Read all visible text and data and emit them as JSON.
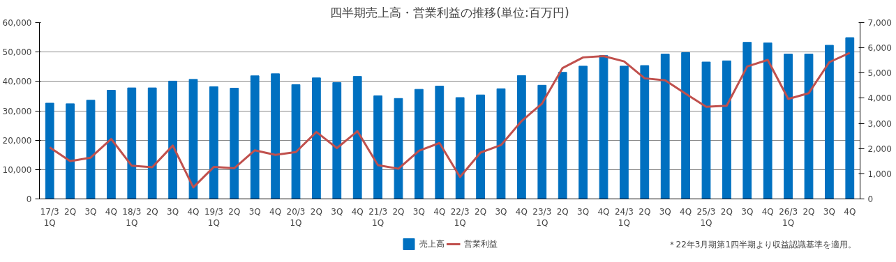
{
  "chart_data": {
    "type": "bar",
    "title": "四半期売上高・営業利益の推移(単位:百万円)",
    "categories": [
      "17/3\n1Q",
      "2Q",
      "3Q",
      "4Q",
      "18/3\n1Q",
      "2Q",
      "3Q",
      "4Q",
      "19/3\n1Q",
      "2Q",
      "3Q",
      "4Q",
      "20/3\n1Q",
      "2Q",
      "3Q",
      "4Q",
      "21/3\n1Q",
      "2Q",
      "3Q",
      "4Q",
      "22/3\n1Q",
      "2Q",
      "3Q",
      "4Q",
      "23/3\n1Q",
      "2Q",
      "3Q",
      "4Q",
      "24/3\n1Q",
      "2Q",
      "3Q",
      "4Q",
      "25/3\n1Q",
      "2Q",
      "3Q",
      "4Q",
      "26/3\n1Q",
      "2Q",
      "3Q",
      "4Q"
    ],
    "series": [
      {
        "name": "売上高",
        "color": "#0070c0",
        "values": [
          32600,
          32400,
          33600,
          37000,
          37800,
          37800,
          40100,
          40700,
          38200,
          37700,
          41900,
          42600,
          38900,
          41200,
          39600,
          41700,
          35100,
          34200,
          37300,
          38400,
          34500,
          35400,
          37500,
          42000,
          38700,
          43100,
          45200,
          48800,
          45200,
          45400,
          49300,
          49800,
          46600,
          47000,
          53300,
          53100,
          49300,
          49300,
          52300,
          54900
        ]
      },
      {
        "name": "営業利益",
        "type": "line",
        "axis": "y2",
        "color": "#c0504d",
        "values": [
          2050,
          1500,
          1640,
          2380,
          1320,
          1260,
          2120,
          460,
          1270,
          1220,
          1930,
          1750,
          1860,
          2660,
          2020,
          2690,
          1340,
          1200,
          1910,
          2220,
          870,
          1840,
          2140,
          3090,
          3790,
          5200,
          5620,
          5670,
          5460,
          4790,
          4710,
          4180,
          3660,
          3700,
          5260,
          5520,
          3970,
          4200,
          5430,
          5800
        ]
      }
    ],
    "ylim": [
      0,
      60000
    ],
    "yticks": [
      {
        "value": 0,
        "label": "0"
      },
      {
        "value": 10000,
        "label": "10,000"
      },
      {
        "value": 20000,
        "label": "20,000"
      },
      {
        "value": 30000,
        "label": "30,000"
      },
      {
        "value": 40000,
        "label": "40,000"
      },
      {
        "value": 50000,
        "label": "50,000"
      },
      {
        "value": 60000,
        "label": "60,000"
      }
    ],
    "y2lim": [
      0,
      7000
    ],
    "y2ticks": [
      {
        "value": 0,
        "label": "0"
      },
      {
        "value": 1000,
        "label": "1,000"
      },
      {
        "value": 2000,
        "label": "2,000"
      },
      {
        "value": 3000,
        "label": "3,000"
      },
      {
        "value": 4000,
        "label": "4,000"
      },
      {
        "value": 5000,
        "label": "5,000"
      },
      {
        "value": 6000,
        "label": "6,000"
      },
      {
        "value": 7000,
        "label": "7,000"
      }
    ],
    "grid": "y",
    "legend": "bottom",
    "annotations": [
      "＊22年3月期第1四半期より収益認識基準を適用。"
    ]
  }
}
